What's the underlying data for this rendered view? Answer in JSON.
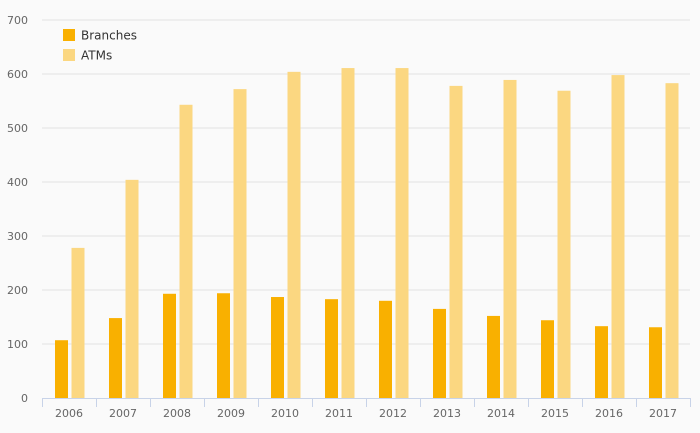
{
  "chart_data": {
    "type": "bar",
    "title": "",
    "xlabel": "",
    "ylabel": "",
    "ylim": [
      0,
      700
    ],
    "yticks": [
      0,
      100,
      200,
      300,
      400,
      500,
      600,
      700
    ],
    "grid": true,
    "legend_placement": "top-left",
    "categories": [
      "2006",
      "2007",
      "2008",
      "2009",
      "2010",
      "2011",
      "2012",
      "2013",
      "2014",
      "2015",
      "2016",
      "2017"
    ],
    "series": [
      {
        "name": "Branches",
        "color": "#f9b000",
        "values": [
          107,
          148,
          193,
          194,
          187,
          183,
          180,
          165,
          152,
          144,
          133,
          131
        ]
      },
      {
        "name": "ATMs",
        "color": "#fbd781",
        "values": [
          278,
          404,
          543,
          572,
          604,
          611,
          611,
          578,
          589,
          569,
          598,
          583
        ]
      }
    ]
  }
}
